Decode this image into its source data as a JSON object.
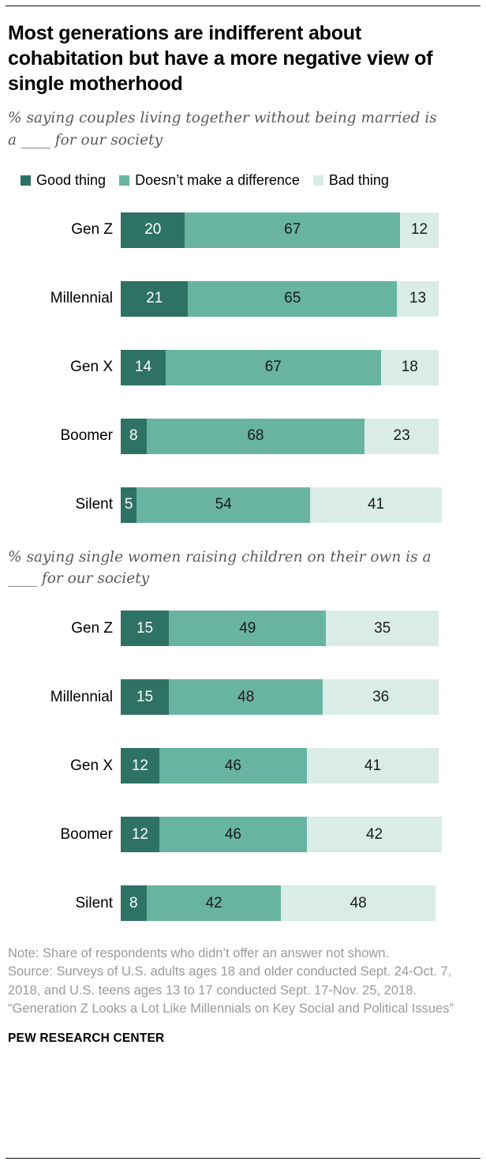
{
  "title": "Most generations are indifferent about cohabitation but have a more negative view of single motherhood",
  "legend": [
    {
      "key": "good",
      "label": "Good thing",
      "color": "#2e7265"
    },
    {
      "key": "neutral",
      "label": "Doesn’t make a difference",
      "color": "#68b4a1"
    },
    {
      "key": "bad",
      "label": "Bad thing",
      "color": "#d9ece6"
    }
  ],
  "chart_data": [
    {
      "type": "bar",
      "orientation": "horizontal",
      "stacked": true,
      "subtitle": "% saying couples living together without being married is a ____ for our society",
      "categories": [
        "Gen Z",
        "Millennial",
        "Gen X",
        "Boomer",
        "Silent"
      ],
      "xlim": [
        0,
        100
      ],
      "legend_position": "top",
      "series": [
        {
          "key": "good",
          "name": "Good thing",
          "color": "#2e7265",
          "values": [
            20,
            21,
            14,
            8,
            5
          ]
        },
        {
          "key": "neutral",
          "name": "Doesn’t make a difference",
          "color": "#68b4a1",
          "values": [
            67,
            65,
            67,
            68,
            54
          ]
        },
        {
          "key": "bad",
          "name": "Bad thing",
          "color": "#d9ece6",
          "values": [
            12,
            13,
            18,
            23,
            41
          ]
        }
      ]
    },
    {
      "type": "bar",
      "orientation": "horizontal",
      "stacked": true,
      "subtitle": "% saying single women raising children on their own is a ____ for our society",
      "categories": [
        "Gen Z",
        "Millennial",
        "Gen X",
        "Boomer",
        "Silent"
      ],
      "xlim": [
        0,
        100
      ],
      "legend_position": "none",
      "series": [
        {
          "key": "good",
          "name": "Good thing",
          "color": "#2e7265",
          "values": [
            15,
            15,
            12,
            12,
            8
          ]
        },
        {
          "key": "neutral",
          "name": "Doesn’t make a difference",
          "color": "#68b4a1",
          "values": [
            49,
            48,
            46,
            46,
            42
          ]
        },
        {
          "key": "bad",
          "name": "Bad thing",
          "color": "#d9ece6",
          "values": [
            35,
            36,
            41,
            42,
            48
          ]
        }
      ]
    }
  ],
  "notes": [
    "Note: Share of respondents who didn’t offer an answer not shown.",
    "Source: Surveys of U.S. adults ages 18 and older conducted Sept. 24-Oct. 7, 2018, and U.S. teens ages 13 to 17 conducted Sept. 17-Nov. 25, 2018.",
    "“Generation Z Looks a Lot Like Millennials on Key Social and Political Issues”"
  ],
  "footer": "PEW RESEARCH CENTER"
}
